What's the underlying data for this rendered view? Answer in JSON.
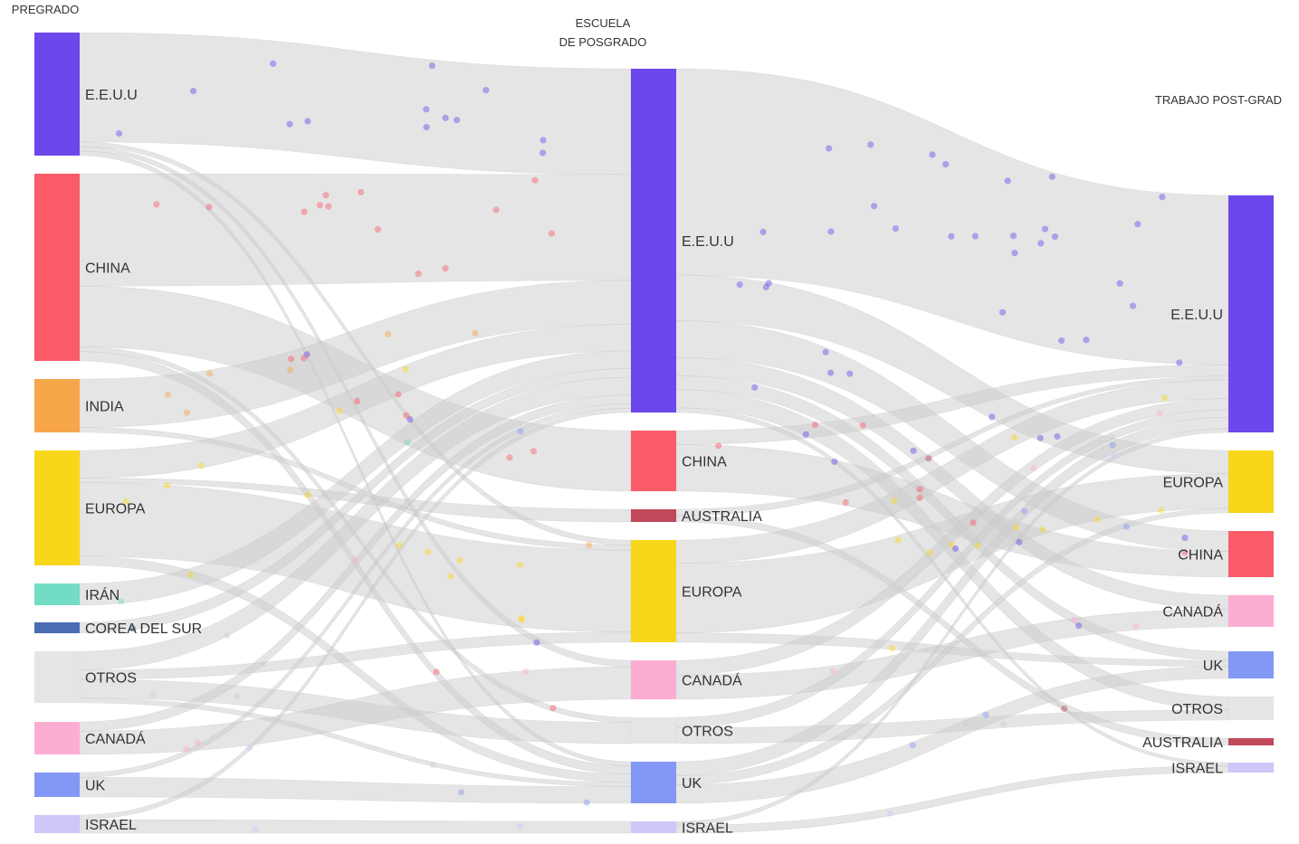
{
  "columns": [
    {
      "header_line1": "PREGRADO",
      "header_line2": ""
    },
    {
      "header_line1": "ESCUELA",
      "header_line2": "DE POSGRADO"
    },
    {
      "header_line1": "TRABAJO POST-GRAD",
      "header_line2": ""
    }
  ],
  "colors": {
    "E.E.U.U": "#6c47ec",
    "CHINA": "#fa5c6a",
    "INDIA": "#f8a64a",
    "EUROPA": "#f8d61a",
    "IRÁN": "#72dcc4",
    "COREA DEL SUR": "#4a6cb2",
    "OTROS": "#e5e5e5",
    "CANADÁ": "#fbaed2",
    "UK": "#8398f4",
    "ISRAEL": "#cdc8f8",
    "AUSTRALIA": "#c0485a",
    "link": "#cccccc"
  },
  "nodes": [
    {
      "id": "u_usa",
      "label": "E.E.U.U",
      "color_key": "E.E.U.U"
    },
    {
      "id": "u_china",
      "label": "CHINA",
      "color_key": "CHINA"
    },
    {
      "id": "u_india",
      "label": "INDIA",
      "color_key": "INDIA"
    },
    {
      "id": "u_europa",
      "label": "EUROPA",
      "color_key": "EUROPA"
    },
    {
      "id": "u_iran",
      "label": "IRÁN",
      "color_key": "IRÁN"
    },
    {
      "id": "u_corea",
      "label": "COREA DEL SUR",
      "color_key": "COREA DEL SUR"
    },
    {
      "id": "u_otros",
      "label": "OTROS",
      "color_key": "OTROS"
    },
    {
      "id": "u_canada",
      "label": "CANADÁ",
      "color_key": "CANADÁ"
    },
    {
      "id": "u_uk",
      "label": "UK",
      "color_key": "UK"
    },
    {
      "id": "u_israel",
      "label": "ISRAEL",
      "color_key": "ISRAEL"
    },
    {
      "id": "g_usa",
      "label": "E.E.U.U",
      "color_key": "E.E.U.U"
    },
    {
      "id": "g_china",
      "label": "CHINA",
      "color_key": "CHINA"
    },
    {
      "id": "g_australia",
      "label": "AUSTRALIA",
      "color_key": "AUSTRALIA"
    },
    {
      "id": "g_europa",
      "label": "EUROPA",
      "color_key": "EUROPA"
    },
    {
      "id": "g_canada",
      "label": "CANADÁ",
      "color_key": "CANADÁ"
    },
    {
      "id": "g_otros",
      "label": "OTROS",
      "color_key": "OTROS"
    },
    {
      "id": "g_uk",
      "label": "UK",
      "color_key": "UK"
    },
    {
      "id": "g_israel",
      "label": "ISRAEL",
      "color_key": "ISRAEL"
    },
    {
      "id": "j_usa",
      "label": "E.E.U.U",
      "color_key": "E.E.U.U"
    },
    {
      "id": "j_europa",
      "label": "EUROPA",
      "color_key": "EUROPA"
    },
    {
      "id": "j_china",
      "label": "CHINA",
      "color_key": "CHINA"
    },
    {
      "id": "j_canada",
      "label": "CANADÁ",
      "color_key": "CANADÁ"
    },
    {
      "id": "j_uk",
      "label": "UK",
      "color_key": "UK"
    },
    {
      "id": "j_otros",
      "label": "OTROS",
      "color_key": "OTROS"
    },
    {
      "id": "j_australia",
      "label": "AUSTRALIA",
      "color_key": "AUSTRALIA"
    },
    {
      "id": "j_israel",
      "label": "ISRAEL",
      "color_key": "ISRAEL"
    }
  ],
  "links": [
    {
      "source": "u_usa",
      "target": "g_usa",
      "value": 24
    },
    {
      "source": "u_usa",
      "target": "g_europa",
      "value": 1
    },
    {
      "source": "u_usa",
      "target": "g_canada",
      "value": 1
    },
    {
      "source": "u_usa",
      "target": "g_uk",
      "value": 1
    },
    {
      "source": "u_china",
      "target": "g_usa",
      "value": 24
    },
    {
      "source": "u_china",
      "target": "g_china",
      "value": 13
    },
    {
      "source": "u_china",
      "target": "g_otros",
      "value": 1
    },
    {
      "source": "u_china",
      "target": "g_uk",
      "value": 2
    },
    {
      "source": "u_india",
      "target": "g_usa",
      "value": 10
    },
    {
      "source": "u_india",
      "target": "g_europa",
      "value": 1
    },
    {
      "source": "u_europa",
      "target": "g_usa",
      "value": 6
    },
    {
      "source": "u_europa",
      "target": "g_europa",
      "value": 16
    },
    {
      "source": "u_europa",
      "target": "g_australia",
      "value": 1
    },
    {
      "source": "u_europa",
      "target": "g_uk",
      "value": 2
    },
    {
      "source": "u_iran",
      "target": "g_usa",
      "value": 4
    },
    {
      "source": "u_corea",
      "target": "g_usa",
      "value": 2
    },
    {
      "source": "u_otros",
      "target": "g_usa",
      "value": 4
    },
    {
      "source": "u_otros",
      "target": "g_europa",
      "value": 2
    },
    {
      "source": "u_otros",
      "target": "g_otros",
      "value": 4
    },
    {
      "source": "u_otros",
      "target": "g_uk",
      "value": 1
    },
    {
      "source": "u_canada",
      "target": "g_usa",
      "value": 2
    },
    {
      "source": "u_canada",
      "target": "g_canada",
      "value": 5
    },
    {
      "source": "u_uk",
      "target": "g_usa",
      "value": 1
    },
    {
      "source": "u_uk",
      "target": "g_uk",
      "value": 4
    },
    {
      "source": "u_israel",
      "target": "g_israel",
      "value": 3
    },
    {
      "source": "u_israel",
      "target": "g_usa",
      "value": 1
    },
    {
      "source": "g_usa",
      "target": "j_usa",
      "value": 45
    },
    {
      "source": "g_usa",
      "target": "j_europa",
      "value": 10
    },
    {
      "source": "g_usa",
      "target": "j_china",
      "value": 8
    },
    {
      "source": "g_usa",
      "target": "j_canada",
      "value": 4
    },
    {
      "source": "g_usa",
      "target": "j_uk",
      "value": 3
    },
    {
      "source": "g_usa",
      "target": "j_otros",
      "value": 4
    },
    {
      "source": "g_usa",
      "target": "j_israel",
      "value": 1
    },
    {
      "source": "g_china",
      "target": "j_usa",
      "value": 3
    },
    {
      "source": "g_china",
      "target": "j_china",
      "value": 10
    },
    {
      "source": "g_australia",
      "target": "j_australia",
      "value": 1
    },
    {
      "source": "g_australia",
      "target": "j_usa",
      "value": 1
    },
    {
      "source": "g_europa",
      "target": "j_usa",
      "value": 5
    },
    {
      "source": "g_europa",
      "target": "j_europa",
      "value": 15
    },
    {
      "source": "g_europa",
      "target": "j_uk",
      "value": 2
    },
    {
      "source": "g_canada",
      "target": "j_usa",
      "value": 3
    },
    {
      "source": "g_canada",
      "target": "j_canada",
      "value": 5
    },
    {
      "source": "g_otros",
      "target": "j_otros",
      "value": 3
    },
    {
      "source": "g_otros",
      "target": "j_usa",
      "value": 2
    },
    {
      "source": "g_uk",
      "target": "j_usa",
      "value": 3
    },
    {
      "source": "g_uk",
      "target": "j_uk",
      "value": 4
    },
    {
      "source": "g_uk",
      "target": "j_europa",
      "value": 2
    },
    {
      "source": "g_israel",
      "target": "j_israel",
      "value": 2
    },
    {
      "source": "g_israel",
      "target": "j_usa",
      "value": 1
    }
  ]
}
